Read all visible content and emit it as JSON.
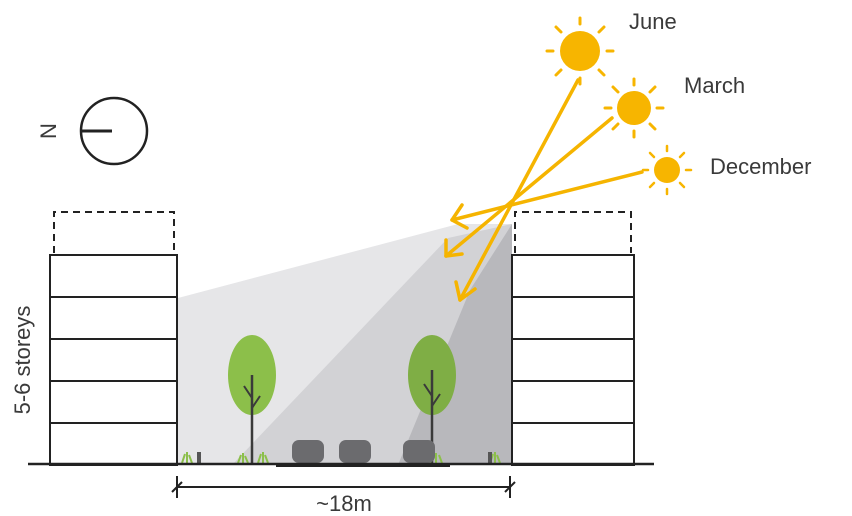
{
  "sun_labels": {
    "june": "June",
    "march": "March",
    "december": "December"
  },
  "compass": {
    "north_label": "N"
  },
  "building_height_label": "5-6 storeys",
  "street_width_label": "~18m",
  "colors": {
    "sun": "#f7b500",
    "sun_rays": "#f5b400",
    "building_outline": "#222222",
    "shadow_light": "#e4e4e6",
    "shadow_mid": "#cfcfd2",
    "shadow_dark": "#b4b4b8",
    "tree_canopy": "#8cbf4a",
    "car": "#6b6b6e"
  }
}
